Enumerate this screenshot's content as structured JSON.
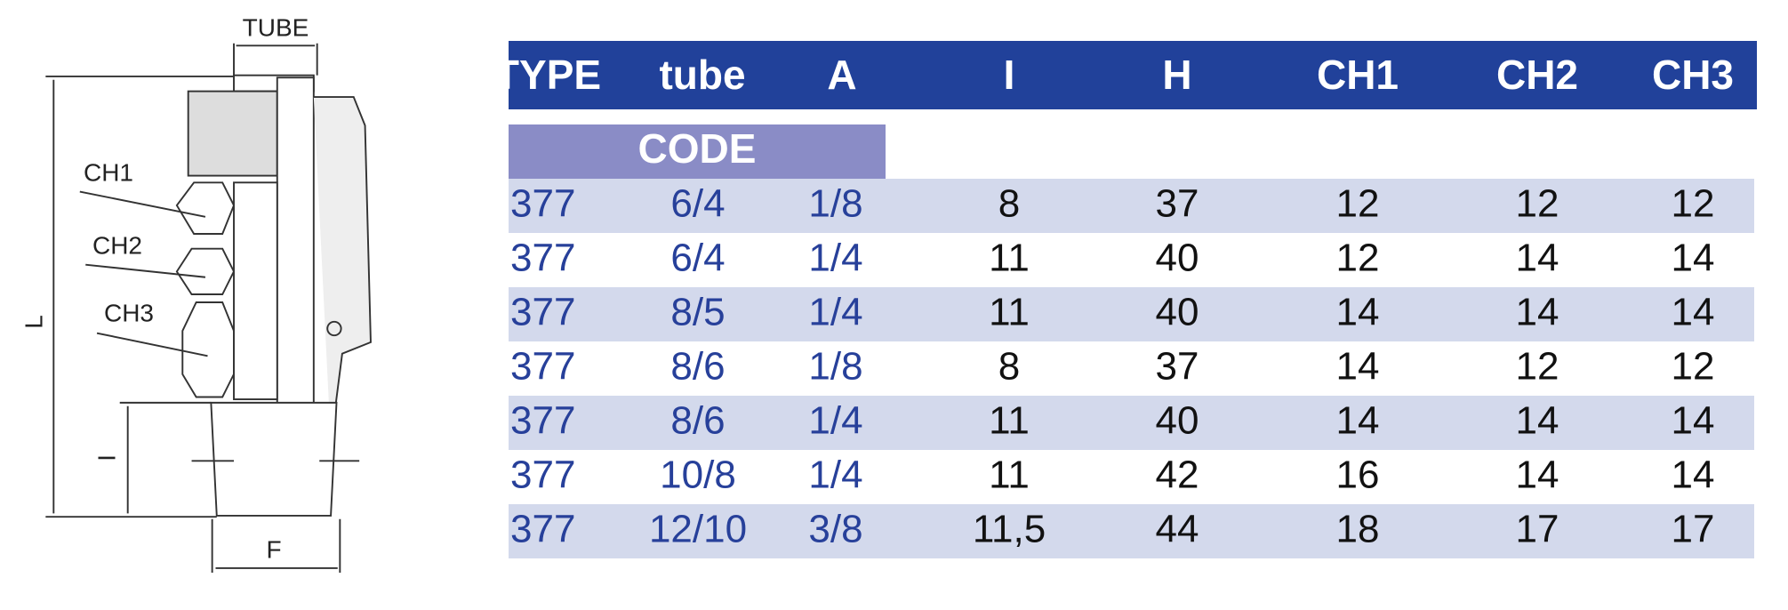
{
  "drawing": {
    "labels": {
      "tube": "TUBE",
      "ch1": "CH1",
      "ch2": "CH2",
      "ch3": "CH3",
      "l": "L",
      "i": "I",
      "f": "F"
    }
  },
  "table": {
    "columns": [
      "TYPE",
      "tube",
      "A",
      "I",
      "H",
      "CH1",
      "CH2",
      "CH3"
    ],
    "code_label": "CODE",
    "rows": [
      [
        "377",
        "6/4",
        "1/8",
        "8",
        "37",
        "12",
        "12",
        "12"
      ],
      [
        "377",
        "6/4",
        "1/4",
        "11",
        "40",
        "12",
        "14",
        "14"
      ],
      [
        "377",
        "8/5",
        "1/4",
        "11",
        "40",
        "14",
        "14",
        "14"
      ],
      [
        "377",
        "8/6",
        "1/8",
        "8",
        "37",
        "14",
        "12",
        "12"
      ],
      [
        "377",
        "8/6",
        "1/4",
        "11",
        "40",
        "14",
        "14",
        "14"
      ],
      [
        "377",
        "10/8",
        "1/4",
        "11",
        "42",
        "16",
        "14",
        "14"
      ],
      [
        "377",
        "12/10",
        "3/8",
        "11,5",
        "44",
        "18",
        "17",
        "17"
      ]
    ]
  }
}
